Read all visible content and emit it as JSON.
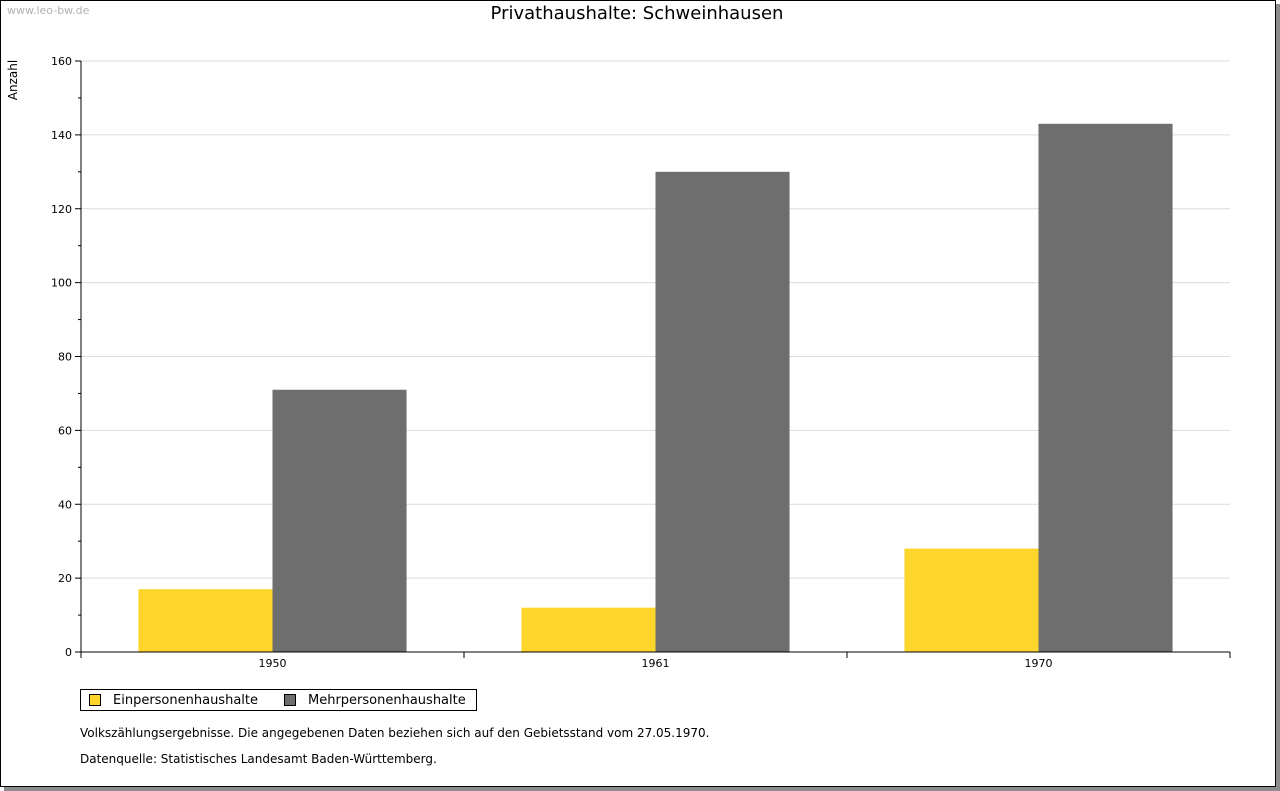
{
  "watermark": "www.leo-bw.de",
  "notes": {
    "source_note": "Volkszählungsergebnisse. Die angegebenen Daten beziehen sich auf den Gebietsstand vom 27.05.1970.",
    "data_source": "Datenquelle: Statistisches Landesamt Baden-Württemberg."
  },
  "chart_data": {
    "type": "bar",
    "title": "Privathaushalte: Schweinhausen",
    "xlabel": "",
    "ylabel": "Anzahl",
    "categories": [
      "1950",
      "1961",
      "1970"
    ],
    "ylim": [
      0,
      160
    ],
    "yticks": [
      0,
      20,
      40,
      60,
      80,
      100,
      120,
      140,
      160
    ],
    "grid": true,
    "legend_position": "bottom-left",
    "series": [
      {
        "name": "Einpersonenhaushalte",
        "values": [
          17,
          12,
          28
        ],
        "color": "#fdd52b"
      },
      {
        "name": "Mehrpersonenhaushalte",
        "values": [
          71,
          130,
          143
        ],
        "color": "#6e6e6e"
      }
    ]
  }
}
